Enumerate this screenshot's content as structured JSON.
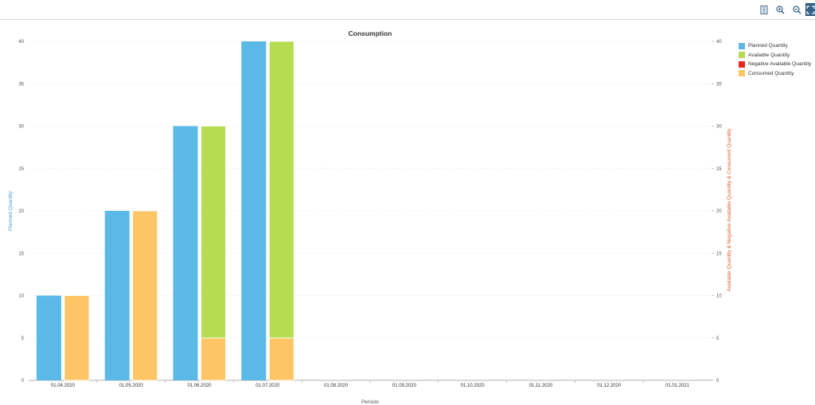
{
  "toolbar": {
    "buttons": [
      {
        "name": "legend-toggle-button",
        "icon": "legend-icon"
      },
      {
        "name": "zoom-in-button",
        "icon": "zoom-in-icon"
      },
      {
        "name": "zoom-out-button",
        "icon": "zoom-out-icon"
      },
      {
        "name": "fullscreen-button",
        "icon": "fullscreen-icon"
      }
    ]
  },
  "chart_data": {
    "type": "bar",
    "title": "Consumption",
    "xlabel": "Periods",
    "ylabel_left": "Planned Quantity",
    "ylabel_right": "Available Quantity & Negative Available Quantity & Consumed Quantity",
    "ylim": [
      0,
      40
    ],
    "yticks": [
      "0",
      "5",
      "10",
      "15",
      "20",
      "25",
      "30",
      "35",
      "40"
    ],
    "categories": [
      "01.04.2020",
      "01.05.2020",
      "01.06.2020",
      "01.07.2020",
      "01.08.2020",
      "01.09.2020",
      "01.10.2020",
      "01.11.2020",
      "01.12.2020",
      "01.01.2021"
    ],
    "series": [
      {
        "name": "Planned Quantity",
        "color": "#5bb9e7",
        "axis": "left",
        "values": [
          10,
          20,
          30,
          40,
          0,
          0,
          0,
          0,
          0,
          0
        ]
      },
      {
        "name": "Available Quantity",
        "color": "#b6dc51",
        "axis": "right",
        "stack": "right",
        "values": [
          0,
          0,
          25,
          35,
          0,
          0,
          0,
          0,
          0,
          0
        ]
      },
      {
        "name": "Negative Available Quantity",
        "color": "#e6281d",
        "axis": "right",
        "stack": "right",
        "values": [
          0,
          0,
          0,
          0,
          0,
          0,
          0,
          0,
          0,
          0
        ]
      },
      {
        "name": "Consumed Quantity",
        "color": "#fdc566",
        "axis": "right",
        "stack": "right",
        "values": [
          10,
          20,
          5,
          5,
          0,
          0,
          0,
          0,
          0,
          0
        ]
      }
    ],
    "grid": true,
    "legend_position": "right"
  }
}
